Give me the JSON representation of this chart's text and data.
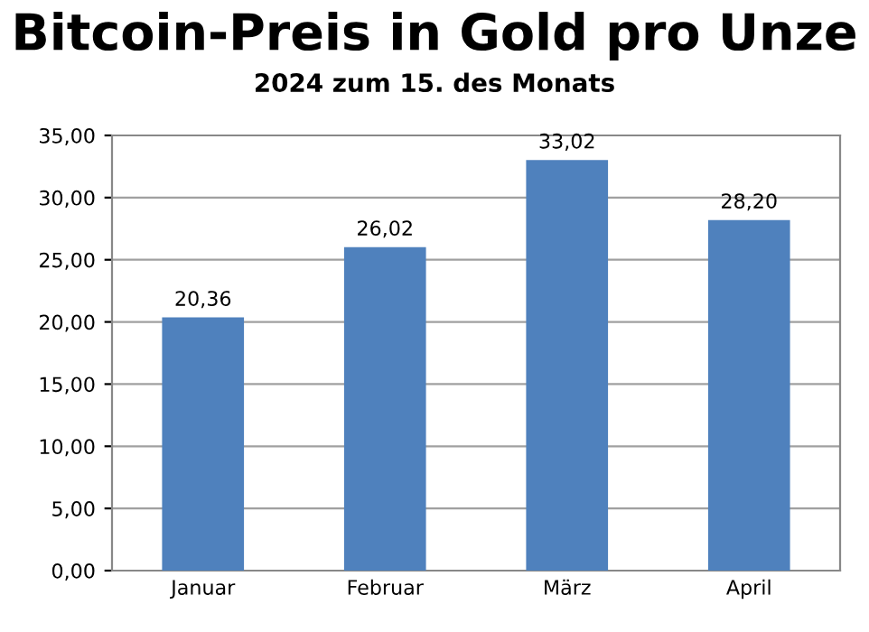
{
  "chart_data": {
    "type": "bar",
    "title": "Bitcoin-Preis in Gold pro Unze",
    "subtitle": "2024 zum 15. des Monats",
    "categories": [
      "Januar",
      "Februar",
      "März",
      "April"
    ],
    "values": [
      20.36,
      26.02,
      33.02,
      28.2
    ],
    "value_labels": [
      "20,36",
      "26,02",
      "33,02",
      "28,20"
    ],
    "color": "#4f81bd",
    "ylim": [
      0,
      35
    ],
    "yticks": [
      {
        "value": 0,
        "label": "0,00"
      },
      {
        "value": 5,
        "label": "5,00"
      },
      {
        "value": 10,
        "label": "10,00"
      },
      {
        "value": 15,
        "label": "15,00"
      },
      {
        "value": 20,
        "label": "20,00"
      },
      {
        "value": 25,
        "label": "25,00"
      },
      {
        "value": 30,
        "label": "30,00"
      },
      {
        "value": 35,
        "label": "35,00"
      }
    ],
    "grid": "y",
    "legend": false
  }
}
